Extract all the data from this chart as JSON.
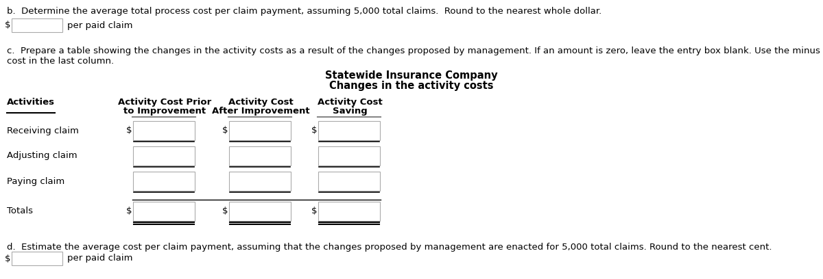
{
  "bg_color": "#ffffff",
  "text_color": "#000000",
  "title_line1": "Statewide Insurance Company",
  "title_line2": "Changes in the activity costs",
  "section_b_text": "b.  Determine the average total process cost per claim payment, assuming 5,000 total claims.  Round to the nearest whole dollar.",
  "section_b_label": "per paid claim",
  "section_c_line1": "c.  Prepare a table showing the changes in the activity costs as a result of the changes proposed by management. If an amount is zero, leave the entry box blank. Use the minus sign to indicate an additional",
  "section_c_line2": "cost in the last column.",
  "section_d_text": "d.  Estimate the average cost per claim payment, assuming that the changes proposed by management are enacted for 5,000 total claims. Round to the nearest cent.",
  "section_d_label": "per paid claim",
  "activities": [
    "Receiving claim",
    "Adjusting claim",
    "Paying claim",
    "Totals"
  ],
  "font_size": 9.5,
  "bold_font_size": 9.5,
  "title_font_size": 10.5
}
